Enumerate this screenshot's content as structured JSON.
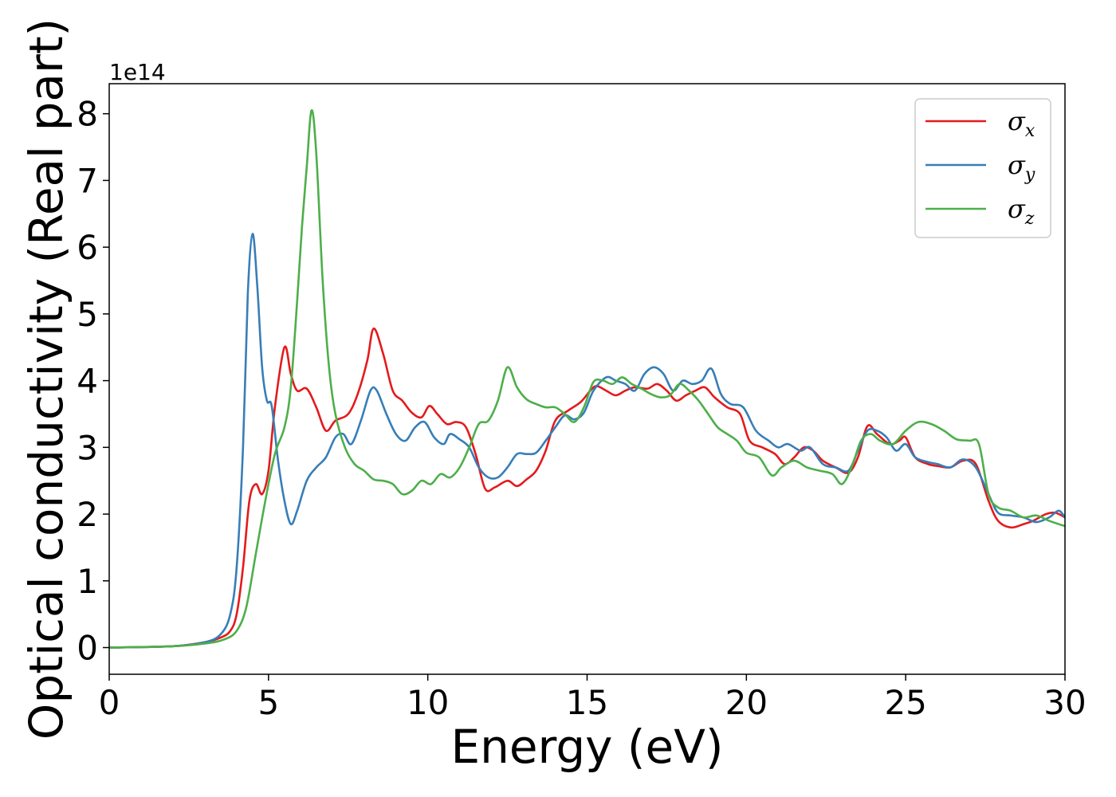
{
  "chart_data": {
    "type": "line",
    "title": "",
    "xlabel": "Energy (eV)",
    "ylabel": "Optical conductivity (Real part)",
    "y_offset_label": "1e14",
    "xlim": [
      0,
      30
    ],
    "ylim": [
      -0.4,
      8.45
    ],
    "xticks": [
      0,
      5,
      10,
      15,
      20,
      25,
      30
    ],
    "yticks": [
      0,
      1,
      2,
      3,
      4,
      5,
      6,
      7,
      8
    ],
    "grid": false,
    "legend_position": "top-right",
    "series": [
      {
        "name": "σx",
        "legend_symbol": "σ",
        "legend_subscript": "x",
        "color": "#e41a1c",
        "points": [
          [
            0,
            0
          ],
          [
            2,
            0.02
          ],
          [
            3,
            0.08
          ],
          [
            3.5,
            0.15
          ],
          [
            3.8,
            0.25
          ],
          [
            4.0,
            0.5
          ],
          [
            4.2,
            1.2
          ],
          [
            4.4,
            2.2
          ],
          [
            4.6,
            2.45
          ],
          [
            4.8,
            2.3
          ],
          [
            5.0,
            2.65
          ],
          [
            5.2,
            3.6
          ],
          [
            5.5,
            4.5
          ],
          [
            5.7,
            4.1
          ],
          [
            5.9,
            3.85
          ],
          [
            6.2,
            3.88
          ],
          [
            6.5,
            3.6
          ],
          [
            6.8,
            3.25
          ],
          [
            7.1,
            3.4
          ],
          [
            7.5,
            3.5
          ],
          [
            7.8,
            3.8
          ],
          [
            8.1,
            4.3
          ],
          [
            8.3,
            4.78
          ],
          [
            8.6,
            4.4
          ],
          [
            8.9,
            3.85
          ],
          [
            9.2,
            3.7
          ],
          [
            9.5,
            3.52
          ],
          [
            9.8,
            3.45
          ],
          [
            10.05,
            3.62
          ],
          [
            10.3,
            3.5
          ],
          [
            10.6,
            3.35
          ],
          [
            10.9,
            3.38
          ],
          [
            11.2,
            3.3
          ],
          [
            11.5,
            2.9
          ],
          [
            11.8,
            2.38
          ],
          [
            12.1,
            2.4
          ],
          [
            12.5,
            2.5
          ],
          [
            12.8,
            2.42
          ],
          [
            13.1,
            2.52
          ],
          [
            13.4,
            2.65
          ],
          [
            13.7,
            2.95
          ],
          [
            14.0,
            3.4
          ],
          [
            14.4,
            3.55
          ],
          [
            14.8,
            3.68
          ],
          [
            15.1,
            3.85
          ],
          [
            15.3,
            3.92
          ],
          [
            15.6,
            3.85
          ],
          [
            15.9,
            3.78
          ],
          [
            16.2,
            3.85
          ],
          [
            16.5,
            3.9
          ],
          [
            16.9,
            3.88
          ],
          [
            17.2,
            3.95
          ],
          [
            17.5,
            3.85
          ],
          [
            17.8,
            3.7
          ],
          [
            18.1,
            3.78
          ],
          [
            18.4,
            3.85
          ],
          [
            18.7,
            3.9
          ],
          [
            19.0,
            3.75
          ],
          [
            19.4,
            3.6
          ],
          [
            19.8,
            3.5
          ],
          [
            20.1,
            3.1
          ],
          [
            20.5,
            3.0
          ],
          [
            20.9,
            2.9
          ],
          [
            21.2,
            2.75
          ],
          [
            21.5,
            2.85
          ],
          [
            21.8,
            3.0
          ],
          [
            22.1,
            2.95
          ],
          [
            22.4,
            2.8
          ],
          [
            22.8,
            2.7
          ],
          [
            23.2,
            2.62
          ],
          [
            23.5,
            2.85
          ],
          [
            23.8,
            3.32
          ],
          [
            24.1,
            3.2
          ],
          [
            24.5,
            3.05
          ],
          [
            24.8,
            3.1
          ],
          [
            25.0,
            3.15
          ],
          [
            25.3,
            2.85
          ],
          [
            25.7,
            2.75
          ],
          [
            26.0,
            2.72
          ],
          [
            26.4,
            2.7
          ],
          [
            26.8,
            2.8
          ],
          [
            27.2,
            2.75
          ],
          [
            27.6,
            2.2
          ],
          [
            27.9,
            1.9
          ],
          [
            28.3,
            1.8
          ],
          [
            28.7,
            1.85
          ],
          [
            29.0,
            1.9
          ],
          [
            29.4,
            2.0
          ],
          [
            29.7,
            2.02
          ],
          [
            30.0,
            1.95
          ]
        ]
      },
      {
        "name": "σy",
        "legend_symbol": "σ",
        "legend_subscript": "y",
        "color": "#377eb8",
        "points": [
          [
            0,
            0
          ],
          [
            2,
            0.02
          ],
          [
            3,
            0.08
          ],
          [
            3.5,
            0.2
          ],
          [
            3.8,
            0.5
          ],
          [
            4.0,
            1.2
          ],
          [
            4.2,
            3.0
          ],
          [
            4.35,
            5.3
          ],
          [
            4.5,
            6.2
          ],
          [
            4.65,
            5.4
          ],
          [
            4.8,
            4.2
          ],
          [
            4.95,
            3.7
          ],
          [
            5.1,
            3.62
          ],
          [
            5.3,
            2.8
          ],
          [
            5.5,
            2.2
          ],
          [
            5.7,
            1.85
          ],
          [
            5.9,
            2.05
          ],
          [
            6.2,
            2.5
          ],
          [
            6.5,
            2.7
          ],
          [
            6.8,
            2.85
          ],
          [
            7.1,
            3.15
          ],
          [
            7.35,
            3.2
          ],
          [
            7.6,
            3.05
          ],
          [
            7.9,
            3.4
          ],
          [
            8.2,
            3.85
          ],
          [
            8.4,
            3.85
          ],
          [
            8.7,
            3.5
          ],
          [
            9.0,
            3.2
          ],
          [
            9.3,
            3.1
          ],
          [
            9.6,
            3.3
          ],
          [
            9.9,
            3.38
          ],
          [
            10.2,
            3.15
          ],
          [
            10.5,
            3.05
          ],
          [
            10.7,
            3.2
          ],
          [
            11.0,
            3.12
          ],
          [
            11.3,
            3.0
          ],
          [
            11.6,
            2.7
          ],
          [
            11.9,
            2.55
          ],
          [
            12.2,
            2.55
          ],
          [
            12.5,
            2.7
          ],
          [
            12.8,
            2.9
          ],
          [
            13.1,
            2.9
          ],
          [
            13.4,
            2.92
          ],
          [
            13.7,
            3.1
          ],
          [
            14.0,
            3.3
          ],
          [
            14.3,
            3.48
          ],
          [
            14.6,
            3.42
          ],
          [
            14.9,
            3.52
          ],
          [
            15.2,
            3.85
          ],
          [
            15.6,
            4.05
          ],
          [
            15.9,
            4.0
          ],
          [
            16.2,
            3.95
          ],
          [
            16.5,
            3.85
          ],
          [
            16.8,
            4.1
          ],
          [
            17.1,
            4.2
          ],
          [
            17.4,
            4.1
          ],
          [
            17.7,
            3.85
          ],
          [
            18.0,
            4.0
          ],
          [
            18.3,
            3.95
          ],
          [
            18.6,
            4.0
          ],
          [
            18.9,
            4.18
          ],
          [
            19.2,
            3.8
          ],
          [
            19.5,
            3.65
          ],
          [
            19.9,
            3.6
          ],
          [
            20.3,
            3.25
          ],
          [
            20.7,
            3.1
          ],
          [
            21.0,
            3.0
          ],
          [
            21.3,
            3.05
          ],
          [
            21.7,
            2.95
          ],
          [
            22.0,
            3.0
          ],
          [
            22.4,
            2.75
          ],
          [
            22.8,
            2.7
          ],
          [
            23.2,
            2.65
          ],
          [
            23.5,
            2.95
          ],
          [
            23.8,
            3.25
          ],
          [
            24.1,
            3.25
          ],
          [
            24.4,
            3.15
          ],
          [
            24.7,
            2.95
          ],
          [
            25.0,
            3.05
          ],
          [
            25.3,
            2.85
          ],
          [
            25.7,
            2.78
          ],
          [
            26.0,
            2.75
          ],
          [
            26.4,
            2.7
          ],
          [
            26.8,
            2.82
          ],
          [
            27.2,
            2.7
          ],
          [
            27.6,
            2.3
          ],
          [
            27.9,
            2.02
          ],
          [
            28.3,
            1.98
          ],
          [
            28.7,
            1.95
          ],
          [
            29.1,
            1.88
          ],
          [
            29.5,
            1.95
          ],
          [
            29.8,
            2.05
          ],
          [
            30.0,
            1.95
          ]
        ]
      },
      {
        "name": "σz",
        "legend_symbol": "σ",
        "legend_subscript": "z",
        "color": "#4daf4a",
        "points": [
          [
            0,
            0
          ],
          [
            2,
            0.02
          ],
          [
            3,
            0.06
          ],
          [
            3.6,
            0.12
          ],
          [
            4.0,
            0.25
          ],
          [
            4.3,
            0.6
          ],
          [
            4.6,
            1.4
          ],
          [
            4.9,
            2.2
          ],
          [
            5.2,
            2.9
          ],
          [
            5.5,
            3.3
          ],
          [
            5.7,
            3.9
          ],
          [
            5.9,
            5.2
          ],
          [
            6.05,
            6.3
          ],
          [
            6.2,
            7.2
          ],
          [
            6.35,
            8.05
          ],
          [
            6.5,
            7.4
          ],
          [
            6.7,
            5.5
          ],
          [
            6.9,
            4.2
          ],
          [
            7.1,
            3.5
          ],
          [
            7.4,
            3.0
          ],
          [
            7.7,
            2.75
          ],
          [
            8.0,
            2.65
          ],
          [
            8.3,
            2.52
          ],
          [
            8.6,
            2.5
          ],
          [
            8.9,
            2.45
          ],
          [
            9.2,
            2.3
          ],
          [
            9.5,
            2.35
          ],
          [
            9.8,
            2.5
          ],
          [
            10.1,
            2.45
          ],
          [
            10.4,
            2.6
          ],
          [
            10.7,
            2.55
          ],
          [
            11.0,
            2.7
          ],
          [
            11.3,
            3.0
          ],
          [
            11.6,
            3.35
          ],
          [
            11.9,
            3.4
          ],
          [
            12.2,
            3.7
          ],
          [
            12.5,
            4.2
          ],
          [
            12.8,
            3.9
          ],
          [
            13.1,
            3.72
          ],
          [
            13.4,
            3.65
          ],
          [
            13.7,
            3.6
          ],
          [
            14.0,
            3.6
          ],
          [
            14.3,
            3.5
          ],
          [
            14.6,
            3.38
          ],
          [
            14.9,
            3.6
          ],
          [
            15.2,
            3.98
          ],
          [
            15.5,
            4.0
          ],
          [
            15.8,
            3.95
          ],
          [
            16.1,
            4.05
          ],
          [
            16.4,
            3.95
          ],
          [
            16.7,
            3.88
          ],
          [
            17.0,
            3.8
          ],
          [
            17.3,
            3.75
          ],
          [
            17.6,
            3.78
          ],
          [
            17.9,
            3.95
          ],
          [
            18.2,
            3.85
          ],
          [
            18.5,
            3.7
          ],
          [
            18.8,
            3.5
          ],
          [
            19.1,
            3.3
          ],
          [
            19.4,
            3.2
          ],
          [
            19.7,
            3.1
          ],
          [
            20.0,
            2.92
          ],
          [
            20.4,
            2.85
          ],
          [
            20.8,
            2.58
          ],
          [
            21.1,
            2.7
          ],
          [
            21.5,
            2.8
          ],
          [
            21.9,
            2.7
          ],
          [
            22.3,
            2.65
          ],
          [
            22.7,
            2.6
          ],
          [
            23.0,
            2.45
          ],
          [
            23.3,
            2.7
          ],
          [
            23.6,
            3.1
          ],
          [
            23.9,
            3.2
          ],
          [
            24.2,
            3.1
          ],
          [
            24.6,
            3.05
          ],
          [
            25.0,
            3.25
          ],
          [
            25.4,
            3.38
          ],
          [
            25.8,
            3.35
          ],
          [
            26.2,
            3.25
          ],
          [
            26.6,
            3.12
          ],
          [
            27.0,
            3.1
          ],
          [
            27.3,
            3.05
          ],
          [
            27.6,
            2.3
          ],
          [
            27.9,
            2.1
          ],
          [
            28.3,
            2.05
          ],
          [
            28.7,
            1.95
          ],
          [
            29.1,
            1.98
          ],
          [
            29.5,
            1.9
          ],
          [
            30.0,
            1.82
          ]
        ]
      }
    ]
  }
}
